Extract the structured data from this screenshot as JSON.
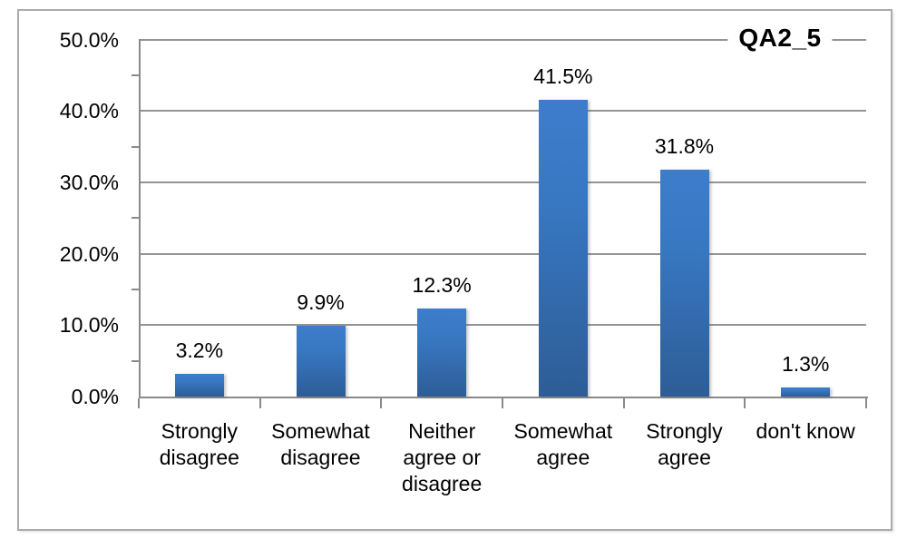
{
  "chart_data": {
    "type": "bar",
    "title": "QA2_5",
    "categories": [
      "Strongly disagree",
      "Somewhat disagree",
      "Neither agree or disagree",
      "Somewhat agree",
      "Strongly agree",
      "don't know"
    ],
    "category_lines": [
      [
        "Strongly",
        "disagree"
      ],
      [
        "Somewhat",
        "disagree"
      ],
      [
        "Neither",
        "agree or",
        "disagree"
      ],
      [
        "Somewhat",
        "agree"
      ],
      [
        "Strongly",
        "agree"
      ],
      [
        "don't know"
      ]
    ],
    "values": [
      3.2,
      9.9,
      12.3,
      41.5,
      31.8,
      1.3
    ],
    "data_labels": [
      "3.2%",
      "9.9%",
      "12.3%",
      "41.5%",
      "31.8%",
      "1.3%"
    ],
    "xlabel": "",
    "ylabel": "",
    "ylim": [
      0,
      50
    ],
    "y_major_ticks": [
      0,
      10,
      20,
      30,
      40,
      50
    ],
    "y_tick_labels": [
      "0.0%",
      "10.0%",
      "20.0%",
      "30.0%",
      "40.0%",
      "50.0%"
    ],
    "y_minor_interval": 5,
    "grid": true,
    "legend": "none",
    "colors": {
      "bar_gradient_top": "#3d7dcb",
      "bar_gradient_bottom": "#2d5d96",
      "gridline": "#949494",
      "axis": "#8a8a8a",
      "frame_border": "#ababab",
      "text": "#000000",
      "background": "#ffffff"
    }
  }
}
